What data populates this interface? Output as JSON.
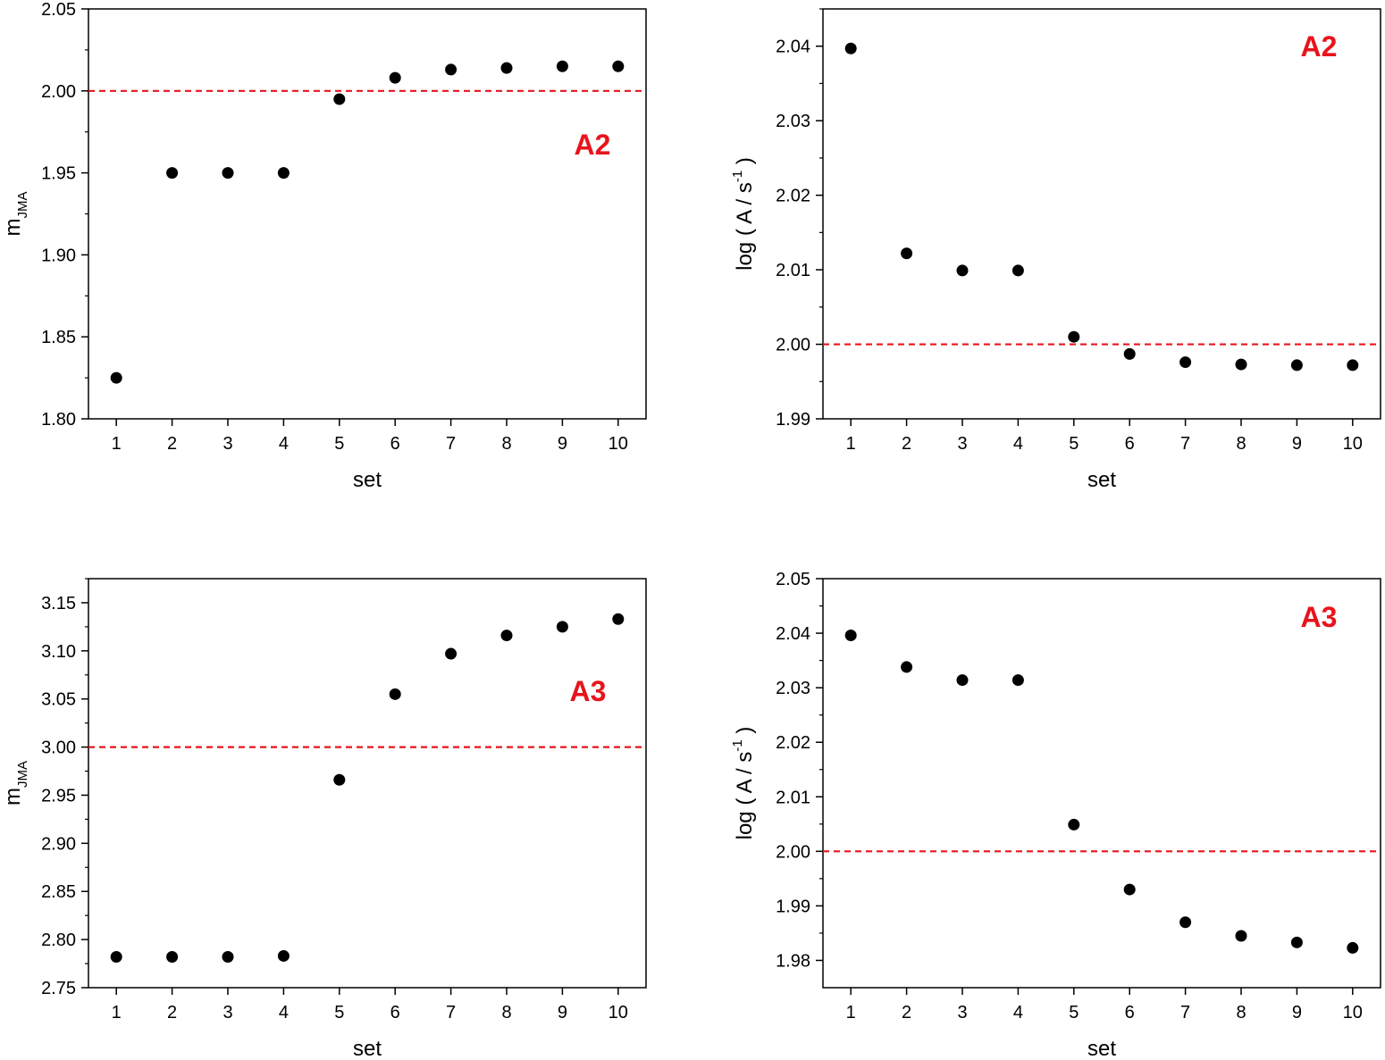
{
  "colors": {
    "marker": "#000000",
    "reference_line": "#e8141c",
    "panel_tag": "#e8141c",
    "axis": "#000000"
  },
  "chart_data": [
    {
      "type": "scatter",
      "panel_tag": "A2",
      "xlabel": "set",
      "ylabel": "m",
      "ylabel_sub": "JMA",
      "ylabel_sup": "",
      "ylabel_tail": "",
      "xlim": [
        0.5,
        10.5
      ],
      "ylim": [
        1.8,
        2.05
      ],
      "xticks": [
        "1",
        "2",
        "3",
        "4",
        "5",
        "6",
        "7",
        "8",
        "9",
        "10"
      ],
      "yticks": [
        "1.80",
        "1.85",
        "1.90",
        "1.95",
        "2.00",
        "2.05"
      ],
      "reference_line": 2.0,
      "x": [
        1,
        2,
        3,
        4,
        5,
        6,
        7,
        8,
        9,
        10
      ],
      "y": [
        1.825,
        1.95,
        1.95,
        1.95,
        1.995,
        2.008,
        2.013,
        2.014,
        2.015,
        2.015
      ]
    },
    {
      "type": "scatter",
      "panel_tag": "A2",
      "xlabel": "set",
      "ylabel": "log ( A / s",
      "ylabel_sub": "",
      "ylabel_sup": "-1",
      "ylabel_tail": " )",
      "xlim": [
        0.5,
        10.5
      ],
      "ylim": [
        1.99,
        2.045
      ],
      "xticks": [
        "1",
        "2",
        "3",
        "4",
        "5",
        "6",
        "7",
        "8",
        "9",
        "10"
      ],
      "yticks": [
        "1.99",
        "2.00",
        "2.01",
        "2.02",
        "2.03",
        "2.04"
      ],
      "reference_line": 2.0,
      "x": [
        1,
        2,
        3,
        4,
        5,
        6,
        7,
        8,
        9,
        10
      ],
      "y": [
        2.0397,
        2.0122,
        2.0099,
        2.0099,
        2.001,
        1.9987,
        1.9976,
        1.9973,
        1.9972,
        1.9972
      ]
    },
    {
      "type": "scatter",
      "panel_tag": "A3",
      "xlabel": "set",
      "ylabel": "m",
      "ylabel_sub": "JMA",
      "ylabel_sup": "",
      "ylabel_tail": "",
      "xlim": [
        0.5,
        10.5
      ],
      "ylim": [
        2.75,
        3.175
      ],
      "xticks": [
        "1",
        "2",
        "3",
        "4",
        "5",
        "6",
        "7",
        "8",
        "9",
        "10"
      ],
      "yticks": [
        "2.75",
        "2.80",
        "2.85",
        "2.90",
        "2.95",
        "3.00",
        "3.05",
        "3.10",
        "3.15"
      ],
      "reference_line": 3.0,
      "x": [
        1,
        2,
        3,
        4,
        5,
        6,
        7,
        8,
        9,
        10
      ],
      "y": [
        2.782,
        2.782,
        2.782,
        2.783,
        2.966,
        3.055,
        3.097,
        3.116,
        3.125,
        3.133
      ]
    },
    {
      "type": "scatter",
      "panel_tag": "A3",
      "xlabel": "set",
      "ylabel": "log ( A / s",
      "ylabel_sub": "",
      "ylabel_sup": "-1",
      "ylabel_tail": " )",
      "xlim": [
        0.5,
        10.5
      ],
      "ylim": [
        1.975,
        2.05
      ],
      "xticks": [
        "1",
        "2",
        "3",
        "4",
        "5",
        "6",
        "7",
        "8",
        "9",
        "10"
      ],
      "yticks": [
        "1.98",
        "1.99",
        "2.00",
        "2.01",
        "2.02",
        "2.03",
        "2.04",
        "2.05"
      ],
      "reference_line": 2.0,
      "x": [
        1,
        2,
        3,
        4,
        5,
        6,
        7,
        8,
        9,
        10
      ],
      "y": [
        2.0396,
        2.0338,
        2.0314,
        2.0314,
        2.0049,
        1.993,
        1.987,
        1.9845,
        1.9833,
        1.9823
      ]
    }
  ]
}
